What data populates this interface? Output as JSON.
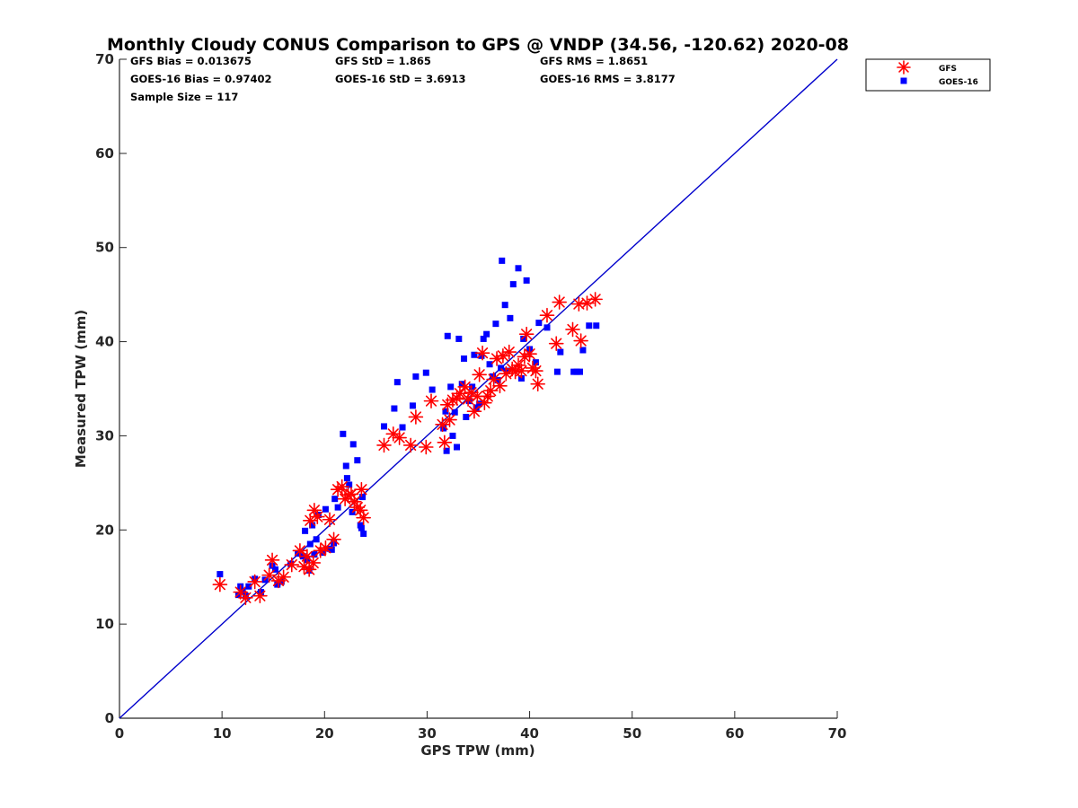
{
  "chart_data": {
    "type": "scatter",
    "title": "Monthly Cloudy CONUS Comparison to GPS @ VNDP (34.56, -120.62) 2020-08",
    "xlabel": "GPS TPW (mm)",
    "ylabel": "Measured TPW (mm)",
    "xlim": [
      0,
      70
    ],
    "ylim": [
      0,
      70
    ],
    "xticks": [
      "0",
      "10",
      "20",
      "30",
      "40",
      "50",
      "60",
      "70"
    ],
    "yticks": [
      "0",
      "10",
      "20",
      "30",
      "40",
      "50",
      "60",
      "70"
    ],
    "grid": false,
    "legend_position": "top-right",
    "reference_line": {
      "x": [
        0,
        70
      ],
      "y": [
        0,
        70
      ],
      "color": "#0000cc"
    },
    "stats": [
      [
        "GFS Bias = 0.013675",
        "GFS StD = 1.865",
        "GFS RMS = 1.8651"
      ],
      [
        "GOES-16 Bias = 0.97402",
        "GOES-16 StD = 3.6913",
        "GOES-16 RMS = 3.8177"
      ],
      [
        "Sample Size = 117",
        "",
        ""
      ]
    ],
    "series": [
      {
        "name": "GFS",
        "marker": "asterisk",
        "color": "#ff0000",
        "points": [
          [
            9.8,
            14.2
          ],
          [
            11.8,
            13.4
          ],
          [
            12.3,
            12.8
          ],
          [
            13.2,
            14.5
          ],
          [
            13.7,
            13.0
          ],
          [
            14.6,
            15.2
          ],
          [
            14.9,
            16.8
          ],
          [
            15.5,
            14.6
          ],
          [
            16.0,
            15.0
          ],
          [
            16.8,
            16.3
          ],
          [
            17.6,
            17.8
          ],
          [
            18.0,
            16.1
          ],
          [
            18.3,
            17.2
          ],
          [
            18.5,
            15.8
          ],
          [
            18.6,
            21.0
          ],
          [
            18.9,
            16.5
          ],
          [
            19.0,
            22.1
          ],
          [
            19.3,
            21.4
          ],
          [
            19.6,
            17.8
          ],
          [
            20.1,
            18.1
          ],
          [
            20.5,
            21.1
          ],
          [
            20.9,
            19.0
          ],
          [
            21.3,
            24.3
          ],
          [
            21.7,
            24.6
          ],
          [
            22.0,
            23.3
          ],
          [
            22.3,
            23.7
          ],
          [
            22.6,
            23.8
          ],
          [
            22.9,
            23.0
          ],
          [
            23.2,
            22.4
          ],
          [
            23.6,
            24.3
          ],
          [
            23.8,
            21.3
          ],
          [
            23.5,
            22.1
          ],
          [
            25.8,
            29.0
          ],
          [
            26.7,
            30.2
          ],
          [
            27.3,
            29.8
          ],
          [
            28.4,
            29.0
          ],
          [
            28.9,
            32.0
          ],
          [
            29.9,
            28.8
          ],
          [
            30.4,
            33.7
          ],
          [
            31.5,
            31.2
          ],
          [
            31.7,
            29.3
          ],
          [
            32.0,
            33.3
          ],
          [
            32.2,
            31.7
          ],
          [
            32.5,
            33.8
          ],
          [
            32.9,
            34.0
          ],
          [
            33.2,
            34.5
          ],
          [
            33.7,
            35.2
          ],
          [
            34.0,
            33.9
          ],
          [
            34.3,
            34.6
          ],
          [
            34.6,
            32.6
          ],
          [
            34.9,
            34.2
          ],
          [
            35.1,
            36.5
          ],
          [
            35.4,
            38.8
          ],
          [
            35.6,
            33.5
          ],
          [
            35.9,
            34.2
          ],
          [
            36.2,
            34.8
          ],
          [
            36.5,
            36.0
          ],
          [
            36.8,
            38.2
          ],
          [
            37.1,
            35.3
          ],
          [
            37.4,
            38.5
          ],
          [
            37.7,
            36.6
          ],
          [
            38.0,
            38.9
          ],
          [
            38.3,
            37.1
          ],
          [
            38.6,
            36.8
          ],
          [
            38.9,
            37.5
          ],
          [
            39.2,
            36.9
          ],
          [
            39.5,
            38.4
          ],
          [
            39.7,
            40.8
          ],
          [
            40.0,
            38.7
          ],
          [
            40.3,
            37.2
          ],
          [
            40.6,
            36.9
          ],
          [
            40.8,
            35.5
          ],
          [
            41.7,
            42.8
          ],
          [
            42.6,
            39.8
          ],
          [
            42.9,
            44.2
          ],
          [
            44.2,
            41.3
          ],
          [
            44.8,
            44.0
          ],
          [
            45.0,
            40.1
          ],
          [
            45.6,
            44.1
          ],
          [
            46.4,
            44.5
          ]
        ]
      },
      {
        "name": "GOES-16",
        "marker": "square",
        "color": "#0000ff",
        "points": [
          [
            9.8,
            15.3
          ],
          [
            11.6,
            13.1
          ],
          [
            11.8,
            14.0
          ],
          [
            12.0,
            13.5
          ],
          [
            12.3,
            13.0
          ],
          [
            12.6,
            14.0
          ],
          [
            13.2,
            14.8
          ],
          [
            13.8,
            13.4
          ],
          [
            14.2,
            14.7
          ],
          [
            14.9,
            16.2
          ],
          [
            15.2,
            15.8
          ],
          [
            15.4,
            14.2
          ],
          [
            15.8,
            14.5
          ],
          [
            16.7,
            16.4
          ],
          [
            17.4,
            17.5
          ],
          [
            17.9,
            17.2
          ],
          [
            18.1,
            19.9
          ],
          [
            18.3,
            16.8
          ],
          [
            18.5,
            15.7
          ],
          [
            18.6,
            18.5
          ],
          [
            18.8,
            20.5
          ],
          [
            19.0,
            17.4
          ],
          [
            19.2,
            19.0
          ],
          [
            19.4,
            21.6
          ],
          [
            19.8,
            17.6
          ],
          [
            20.1,
            22.2
          ],
          [
            20.5,
            18.0
          ],
          [
            20.7,
            17.9
          ],
          [
            20.9,
            18.6
          ],
          [
            21.0,
            23.3
          ],
          [
            21.3,
            22.4
          ],
          [
            21.8,
            30.2
          ],
          [
            22.1,
            26.8
          ],
          [
            22.2,
            25.5
          ],
          [
            22.4,
            24.8
          ],
          [
            22.7,
            21.9
          ],
          [
            22.8,
            29.1
          ],
          [
            23.2,
            27.4
          ],
          [
            23.5,
            20.5
          ],
          [
            23.6,
            20.2
          ],
          [
            23.8,
            19.6
          ],
          [
            23.7,
            23.5
          ],
          [
            25.8,
            31.0
          ],
          [
            26.8,
            32.9
          ],
          [
            27.1,
            35.7
          ],
          [
            27.6,
            30.9
          ],
          [
            28.6,
            33.2
          ],
          [
            28.9,
            36.3
          ],
          [
            29.9,
            36.7
          ],
          [
            30.5,
            34.9
          ],
          [
            31.6,
            30.8
          ],
          [
            31.8,
            32.6
          ],
          [
            31.9,
            28.4
          ],
          [
            32.0,
            40.6
          ],
          [
            32.3,
            35.2
          ],
          [
            32.5,
            30.0
          ],
          [
            32.7,
            32.5
          ],
          [
            32.9,
            28.8
          ],
          [
            33.1,
            40.3
          ],
          [
            33.4,
            35.5
          ],
          [
            33.6,
            38.2
          ],
          [
            33.8,
            32.0
          ],
          [
            34.1,
            33.7
          ],
          [
            34.4,
            35.2
          ],
          [
            34.6,
            38.6
          ],
          [
            34.8,
            33.0
          ],
          [
            35.1,
            33.4
          ],
          [
            35.3,
            38.5
          ],
          [
            35.5,
            40.3
          ],
          [
            35.8,
            40.8
          ],
          [
            36.1,
            37.6
          ],
          [
            36.4,
            36.3
          ],
          [
            36.7,
            41.9
          ],
          [
            36.9,
            35.9
          ],
          [
            37.2,
            37.2
          ],
          [
            37.3,
            48.6
          ],
          [
            37.6,
            43.9
          ],
          [
            37.8,
            36.9
          ],
          [
            38.1,
            42.5
          ],
          [
            38.4,
            46.1
          ],
          [
            38.9,
            47.8
          ],
          [
            39.2,
            36.1
          ],
          [
            39.4,
            40.3
          ],
          [
            39.7,
            46.5
          ],
          [
            40.0,
            39.2
          ],
          [
            40.6,
            37.8
          ],
          [
            40.9,
            42.0
          ],
          [
            41.7,
            41.5
          ],
          [
            42.7,
            36.8
          ],
          [
            43.0,
            38.9
          ],
          [
            44.3,
            36.8
          ],
          [
            44.6,
            36.8
          ],
          [
            44.9,
            36.8
          ],
          [
            45.2,
            39.1
          ],
          [
            45.8,
            41.7
          ],
          [
            46.5,
            41.7
          ]
        ]
      }
    ]
  }
}
